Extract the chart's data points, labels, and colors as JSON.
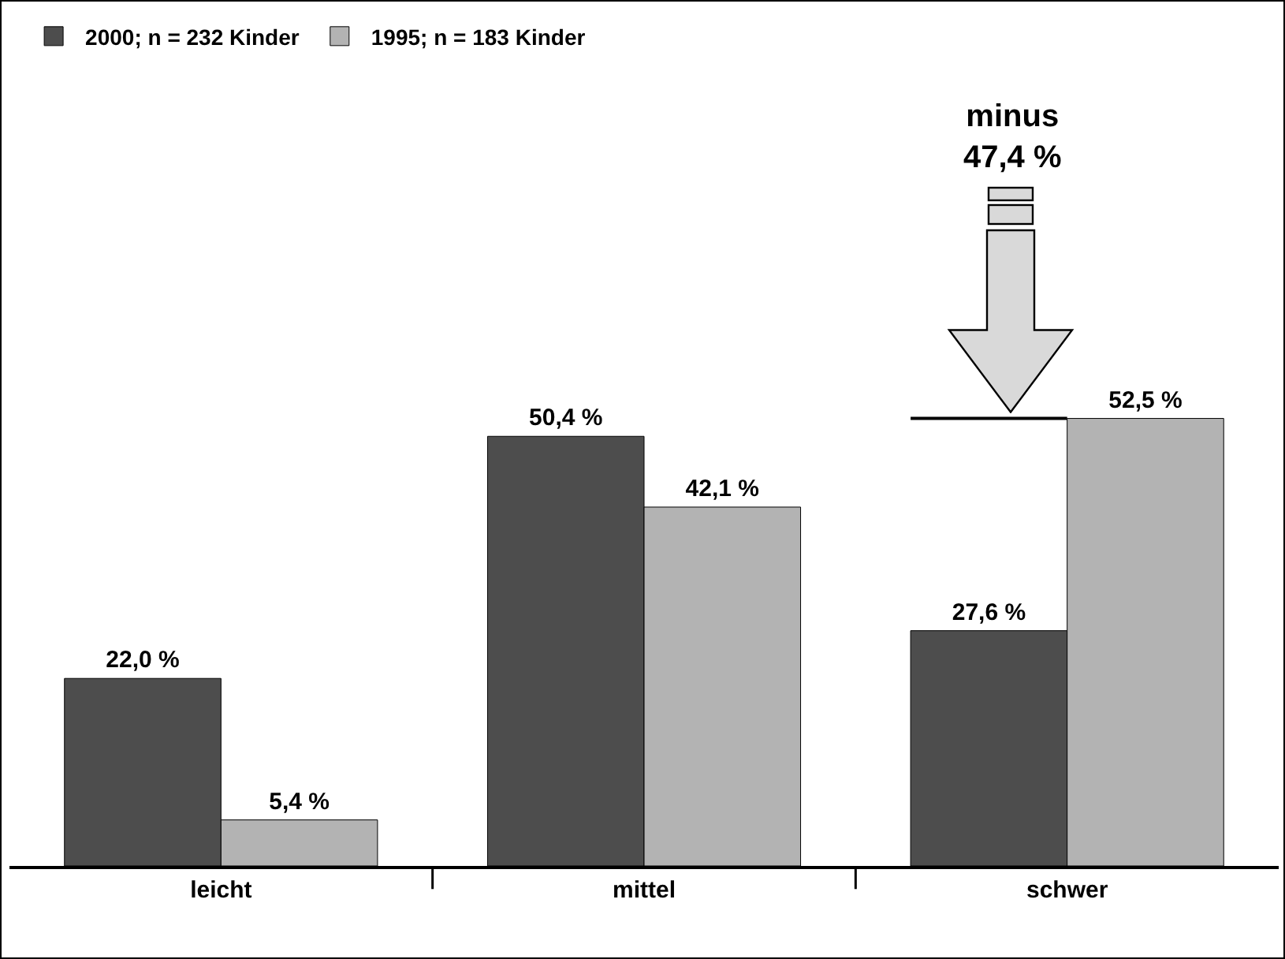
{
  "chart_data": {
    "type": "bar",
    "categories": [
      "leicht",
      "mittel",
      "schwer"
    ],
    "series": [
      {
        "name": "2000; n = 232 Kinder",
        "color": "#4d4d4d",
        "values": [
          22.0,
          50.4,
          27.6
        ],
        "value_labels": [
          "22,0 %",
          "50,4 %",
          "27,6 %"
        ]
      },
      {
        "name": "1995; n = 183 Kinder",
        "color": "#b3b3b3",
        "values": [
          5.4,
          42.1,
          52.5
        ],
        "value_labels": [
          "5,4 %",
          "42,1 %",
          "52,5 %"
        ]
      }
    ],
    "annotations": [
      "minus\n47,4 %"
    ],
    "ref_lines": [
      {
        "axis": "y",
        "value": 52.5,
        "color": "#000000"
      }
    ],
    "legend": "top left"
  }
}
